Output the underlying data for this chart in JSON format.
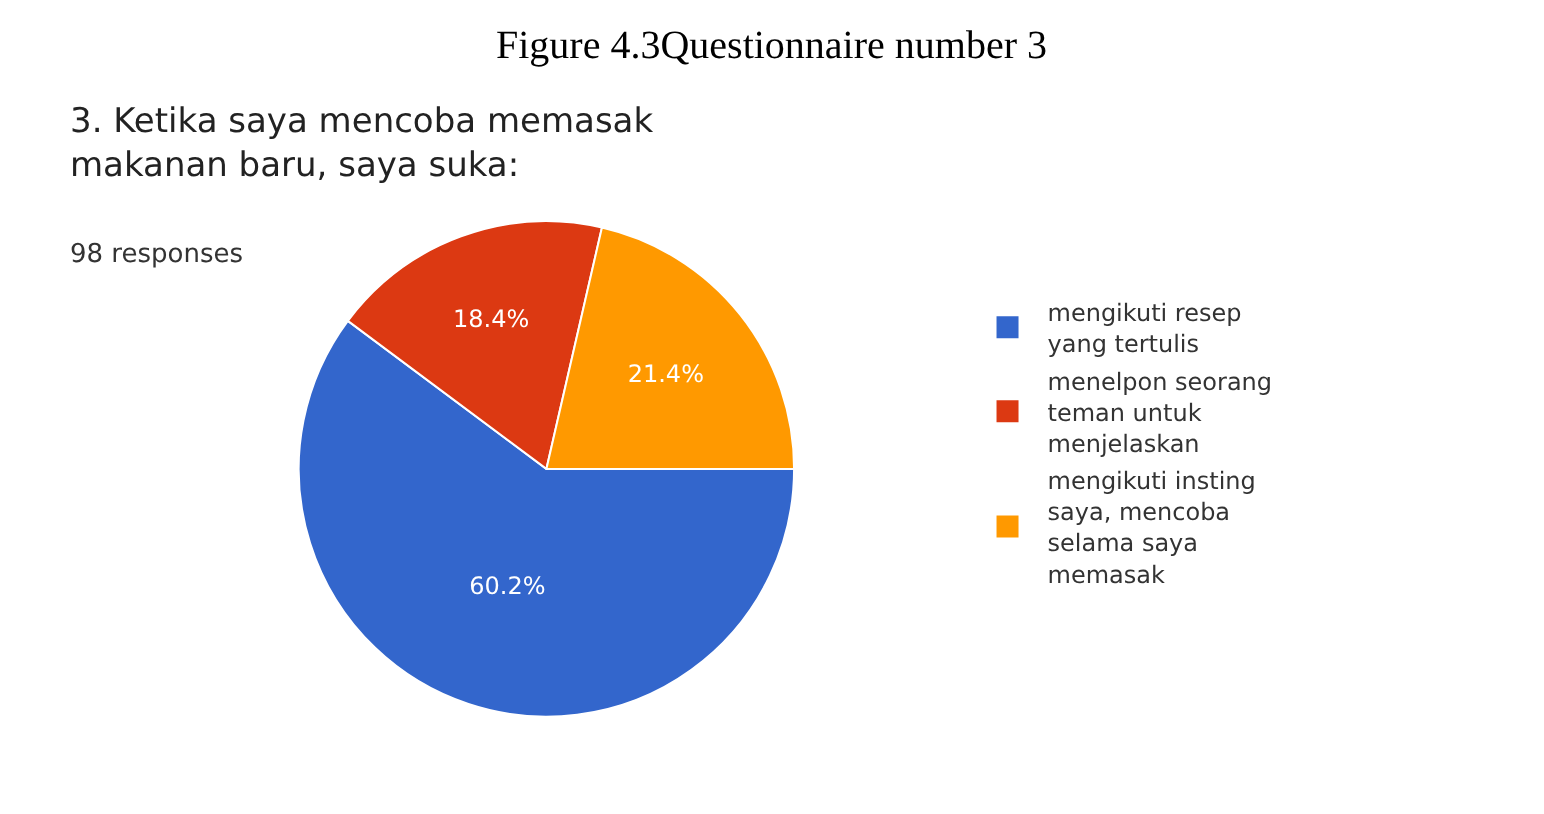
{
  "chart_data": {
    "type": "pie",
    "title": "3. Ketika saya mencoba memasak makanan baru, saya suka:",
    "subtitle": "98 responses",
    "annotations": [
      "Figure 4.3Questionnaire number 3"
    ],
    "categories": [
      "mengikuti resep yang tertulis",
      "menelpon seorang teman untuk menjelaskan",
      "mengikuti insting saya, mencoba selama saya memasak"
    ],
    "values": [
      60.2,
      18.4,
      21.4
    ],
    "value_labels": [
      "60.2%",
      "18.4%",
      "21.4%"
    ],
    "colors": [
      "#3366cc",
      "#dc3912",
      "#ff9900"
    ],
    "legend": "right"
  }
}
